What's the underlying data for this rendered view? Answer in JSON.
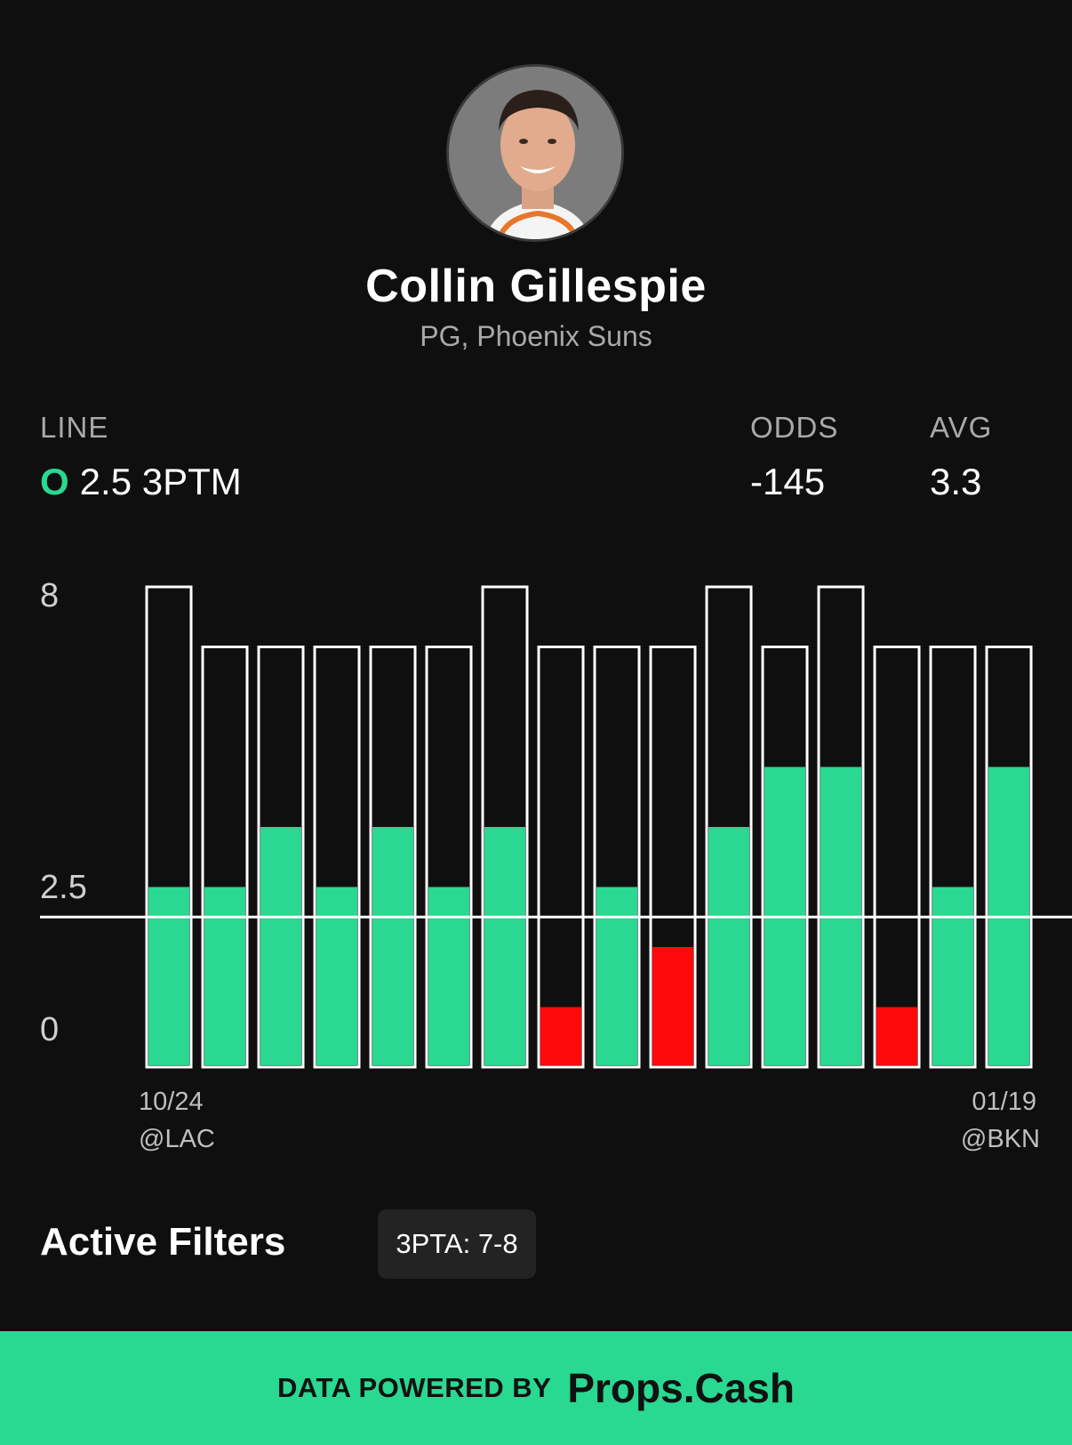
{
  "player": {
    "name": "Collin Gillespie",
    "position_team": "PG, Phoenix Suns",
    "avatar_icon": "player-headshot"
  },
  "stats": {
    "line_label": "LINE",
    "line_side": "O",
    "line_value": "2.5 3PTM",
    "odds_label": "ODDS",
    "odds_value": "-145",
    "avg_label": "AVG",
    "avg_value": "3.3"
  },
  "colors": {
    "over": "#29d891",
    "under": "#ff0a0a",
    "background": "#0f0f0f"
  },
  "chart_data": {
    "type": "bar",
    "y_ticks": [
      "8",
      "2.5",
      "0"
    ],
    "ylim": [
      0,
      8
    ],
    "line": 2.5,
    "x_labels": {
      "first_date": "10/24",
      "first_opp": "@LAC",
      "last_date": "01/19",
      "last_opp": "@BKN"
    },
    "series": [
      {
        "values": [
          3,
          3,
          4,
          3,
          4,
          3,
          4,
          1,
          3,
          2,
          4,
          5,
          5,
          1,
          3,
          5
        ]
      },
      {
        "values": [
          8,
          7,
          7,
          7,
          7,
          7,
          8,
          7,
          7,
          7,
          8,
          7,
          8,
          7,
          7,
          7
        ]
      }
    ],
    "legend": "none",
    "grid": false
  },
  "filters": {
    "title": "Active Filters",
    "chips": [
      "3PTA: 7-8"
    ]
  },
  "footer": {
    "prefix": "DATA POWERED BY",
    "brand": "Props.Cash"
  }
}
